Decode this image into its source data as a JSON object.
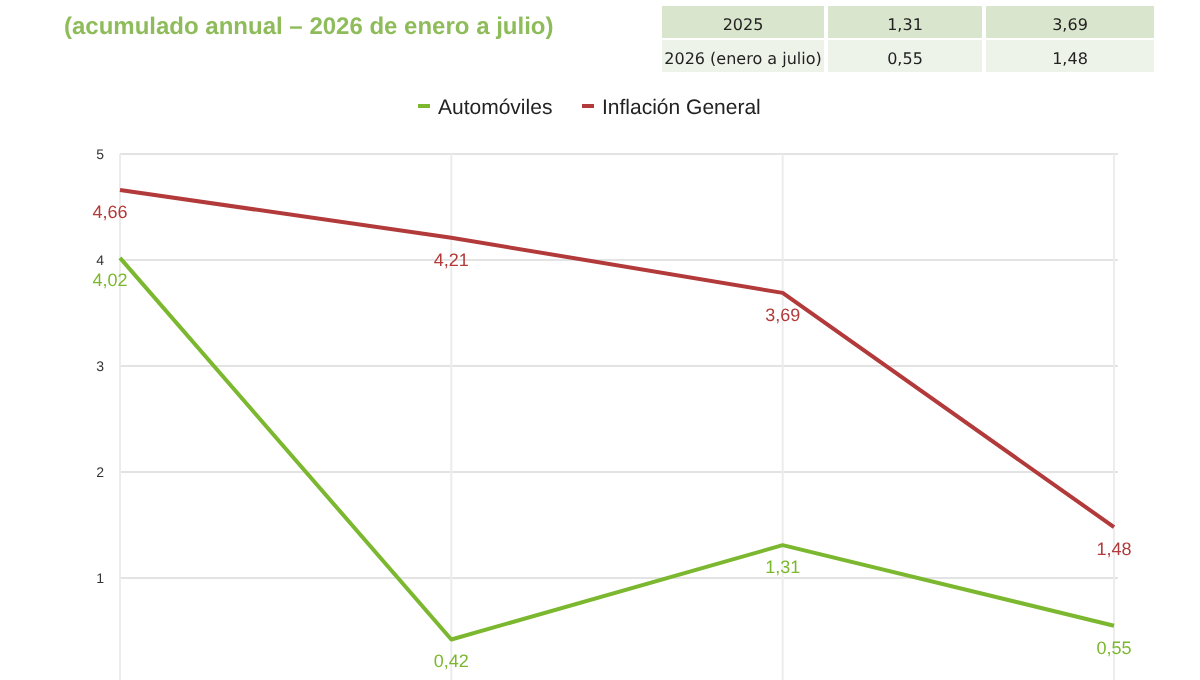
{
  "chart_data": {
    "type": "line",
    "title": "(acumulado annual – 2026 de enero a julio)",
    "categories": [
      null,
      null,
      null,
      null
    ],
    "series": [
      {
        "name": "Automóviles",
        "color": "#7cb82f",
        "values": [
          4.02,
          0.42,
          1.31,
          0.55
        ],
        "value_labels": [
          "4,02",
          "0,42",
          "1,31",
          "0,55"
        ]
      },
      {
        "name": "Inflación General",
        "color": "#b23a3a",
        "values": [
          4.66,
          4.21,
          3.69,
          1.48
        ],
        "value_labels": [
          "4,66",
          "4,21",
          "3,69",
          "1,48"
        ]
      }
    ],
    "ylim": [
      0,
      5
    ],
    "yticks": [
      1,
      2,
      3,
      4,
      5
    ],
    "grid": true,
    "legend": "top",
    "marker": "none",
    "annotations": [
      "2025",
      "2026 (enero a julio)"
    ]
  }
}
